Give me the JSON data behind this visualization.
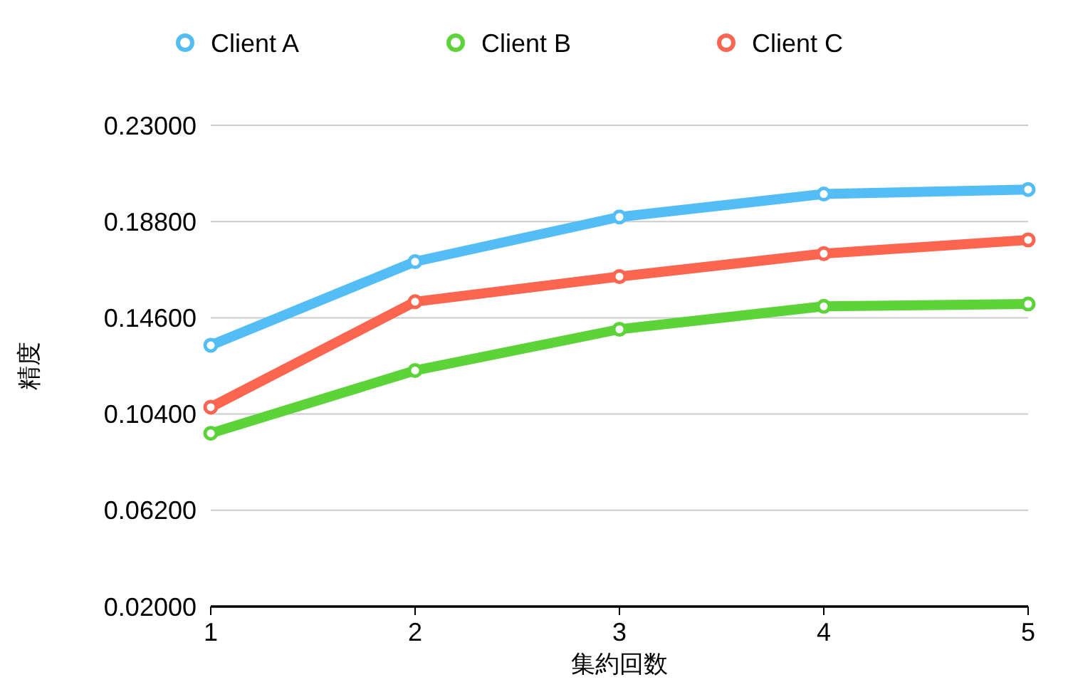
{
  "chart_data": {
    "type": "line",
    "xlabel": "集約回数",
    "ylabel": "精度",
    "x": [
      1,
      2,
      3,
      4,
      5
    ],
    "xlim": [
      1,
      5
    ],
    "xticks": [
      1,
      2,
      3,
      4,
      5
    ],
    "ylim": [
      0.02,
      0.23
    ],
    "yticks": [
      {
        "value": 0.02,
        "label": "0.02000"
      },
      {
        "value": 0.062,
        "label": "0.06200"
      },
      {
        "value": 0.104,
        "label": "0.10400"
      },
      {
        "value": 0.146,
        "label": "0.14600"
      },
      {
        "value": 0.188,
        "label": "0.18800"
      },
      {
        "value": 0.23,
        "label": "0.23000"
      }
    ],
    "grid": "y",
    "legend": "top",
    "marker": "circle",
    "line_style": "solid",
    "series": [
      {
        "name": "Client A",
        "color": "#55bdf6",
        "values": [
          0.134,
          0.1705,
          0.19,
          0.2,
          0.202
        ]
      },
      {
        "name": "Client B",
        "color": "#5dd33a",
        "values": [
          0.0956,
          0.123,
          0.141,
          0.151,
          0.152
        ]
      },
      {
        "name": "Client C",
        "color": "#fc6550",
        "values": [
          0.107,
          0.153,
          0.164,
          0.174,
          0.18
        ]
      }
    ]
  }
}
